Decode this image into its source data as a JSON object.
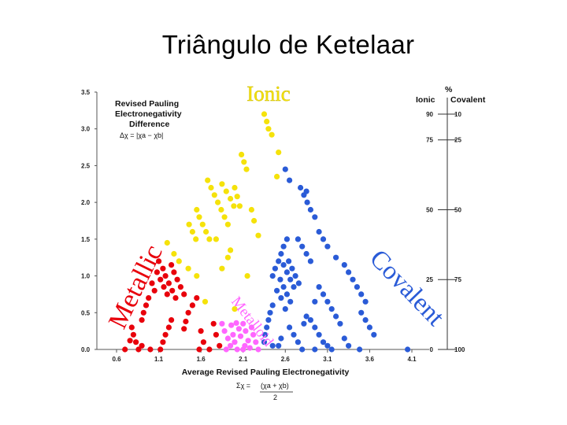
{
  "slide": {
    "title": "Triângulo de Ketelaar"
  },
  "chart_data": {
    "type": "scatter",
    "x_ticks": [
      "0.6",
      "1.1",
      "1.6",
      "2.1",
      "2.6",
      "3.1",
      "3.6",
      "4.1"
    ],
    "y_ticks": [
      "0.0",
      "0.5",
      "1.0",
      "1.5",
      "2.0",
      "2.5",
      "3.0",
      "3.5"
    ],
    "xlim": [
      0.6,
      4.1
    ],
    "ylim": [
      0,
      3.5
    ],
    "xlabel": "Average Revised Pauling Electronegativity",
    "x_formula": {
      "lhs": "Σχ =",
      "numerator": "(χa + χb)",
      "denominator": "2"
    },
    "ylabel_lines": [
      "Revised Pauling",
      "Electronegativity",
      "Difference"
    ],
    "y_formula": "Δχ = |χa − χb|",
    "region_labels": {
      "ionic": "Ionic",
      "covalent": "Covalent",
      "metallic": "Metallic",
      "metalloid": "Metalloid"
    },
    "percent_scale": {
      "header": "%",
      "left_title": "Ionic",
      "right_title": "Covalent",
      "rows": [
        {
          "delta_chi": 3.2,
          "ionic": "90",
          "covalent": "10"
        },
        {
          "delta_chi": 2.85,
          "ionic": "75",
          "covalent": "25"
        },
        {
          "delta_chi": 1.9,
          "ionic": "50",
          "covalent": "50"
        },
        {
          "delta_chi": 0.95,
          "ionic": "25",
          "covalent": "75"
        },
        {
          "delta_chi": 0.0,
          "ionic": "0",
          "covalent": "100"
        }
      ]
    },
    "series": [
      {
        "region": "ionic",
        "color": "#f5e20a",
        "points": [
          [
            2.35,
            3.2
          ],
          [
            2.38,
            3.1
          ],
          [
            2.4,
            3.0
          ],
          [
            2.44,
            2.92
          ],
          [
            2.08,
            2.65
          ],
          [
            2.11,
            2.55
          ],
          [
            2.14,
            2.45
          ],
          [
            2.52,
            2.68
          ],
          [
            2.5,
            2.35
          ],
          [
            1.68,
            2.3
          ],
          [
            1.72,
            2.2
          ],
          [
            1.76,
            2.1
          ],
          [
            1.8,
            2.0
          ],
          [
            1.84,
            1.9
          ],
          [
            1.88,
            1.8
          ],
          [
            1.92,
            1.7
          ],
          [
            1.85,
            2.25
          ],
          [
            1.9,
            2.15
          ],
          [
            1.95,
            2.05
          ],
          [
            1.99,
            1.95
          ],
          [
            2.0,
            2.2
          ],
          [
            2.03,
            2.08
          ],
          [
            2.06,
            1.95
          ],
          [
            1.55,
            1.9
          ],
          [
            1.58,
            1.8
          ],
          [
            1.62,
            1.7
          ],
          [
            1.66,
            1.6
          ],
          [
            1.7,
            1.5
          ],
          [
            1.46,
            1.7
          ],
          [
            1.5,
            1.6
          ],
          [
            1.54,
            1.5
          ],
          [
            2.2,
            1.9
          ],
          [
            2.23,
            1.75
          ],
          [
            2.28,
            1.55
          ],
          [
            1.2,
            1.45
          ],
          [
            1.28,
            1.3
          ],
          [
            1.34,
            1.2
          ],
          [
            1.45,
            1.1
          ],
          [
            1.55,
            1.0
          ],
          [
            1.95,
            1.35
          ],
          [
            1.92,
            1.25
          ],
          [
            1.85,
            1.1
          ],
          [
            2.15,
            1.0
          ],
          [
            2.0,
            0.55
          ],
          [
            1.65,
            0.65
          ],
          [
            1.78,
            1.5
          ]
        ]
      },
      {
        "region": "metallic",
        "color": "#e8000b",
        "points": [
          [
            1.1,
            1.2
          ],
          [
            1.15,
            1.1
          ],
          [
            1.18,
            1.0
          ],
          [
            1.22,
            0.9
          ],
          [
            1.26,
            0.8
          ],
          [
            1.3,
            0.7
          ],
          [
            1.08,
            1.05
          ],
          [
            1.12,
            0.95
          ],
          [
            1.16,
            0.85
          ],
          [
            1.2,
            0.75
          ],
          [
            1.25,
            1.15
          ],
          [
            1.28,
            1.05
          ],
          [
            1.32,
            0.95
          ],
          [
            1.36,
            0.85
          ],
          [
            1.4,
            0.75
          ],
          [
            1.02,
            0.9
          ],
          [
            1.05,
            0.8
          ],
          [
            0.98,
            0.7
          ],
          [
            0.95,
            0.6
          ],
          [
            0.92,
            0.5
          ],
          [
            0.9,
            0.4
          ],
          [
            0.78,
            0.3
          ],
          [
            0.8,
            0.2
          ],
          [
            0.83,
            0.1
          ],
          [
            0.86,
            0.0
          ],
          [
            0.76,
            0.12
          ],
          [
            0.9,
            0.05
          ],
          [
            0.7,
            0.0
          ],
          [
            1.0,
            0.0
          ],
          [
            1.25,
            0.4
          ],
          [
            1.22,
            0.3
          ],
          [
            1.18,
            0.2
          ],
          [
            1.15,
            0.1
          ],
          [
            1.12,
            0.0
          ],
          [
            1.45,
            0.5
          ],
          [
            1.5,
            0.6
          ],
          [
            1.55,
            0.7
          ],
          [
            1.42,
            0.38
          ],
          [
            1.4,
            0.28
          ],
          [
            1.6,
            0.25
          ],
          [
            1.63,
            0.1
          ],
          [
            1.58,
            0.0
          ],
          [
            1.75,
            0.35
          ],
          [
            1.78,
            0.2
          ],
          [
            1.82,
            0.05
          ],
          [
            1.7,
            0.0
          ]
        ]
      },
      {
        "region": "metalloid",
        "color": "#ff66ff",
        "points": [
          [
            1.85,
            0.35
          ],
          [
            1.88,
            0.25
          ],
          [
            1.92,
            0.15
          ],
          [
            1.95,
            0.05
          ],
          [
            1.98,
            0.2
          ],
          [
            2.0,
            0.1
          ],
          [
            2.03,
            0.0
          ],
          [
            2.05,
            0.28
          ],
          [
            2.07,
            0.18
          ],
          [
            2.1,
            0.35
          ],
          [
            2.13,
            0.25
          ],
          [
            2.16,
            0.12
          ],
          [
            2.18,
            0.02
          ],
          [
            2.2,
            0.3
          ],
          [
            2.22,
            0.2
          ],
          [
            2.25,
            0.1
          ],
          [
            2.28,
            0.0
          ],
          [
            1.9,
            0.0
          ],
          [
            2.1,
            0.0
          ],
          [
            1.96,
            0.33
          ],
          [
            2.02,
            0.36
          ],
          [
            2.12,
            0.05
          ]
        ]
      },
      {
        "region": "covalent",
        "color": "#2a5bd7",
        "points": [
          [
            2.6,
            2.45
          ],
          [
            2.65,
            2.3
          ],
          [
            2.78,
            2.2
          ],
          [
            2.82,
            2.1
          ],
          [
            2.86,
            2.0
          ],
          [
            2.9,
            1.9
          ],
          [
            2.95,
            1.8
          ],
          [
            2.85,
            2.15
          ],
          [
            3.0,
            1.6
          ],
          [
            3.05,
            1.5
          ],
          [
            3.1,
            1.4
          ],
          [
            3.2,
            1.25
          ],
          [
            3.3,
            1.15
          ],
          [
            3.35,
            1.05
          ],
          [
            3.4,
            0.95
          ],
          [
            3.45,
            0.85
          ],
          [
            3.5,
            0.75
          ],
          [
            3.55,
            0.65
          ],
          [
            3.5,
            0.5
          ],
          [
            3.55,
            0.4
          ],
          [
            3.6,
            0.3
          ],
          [
            3.65,
            0.2
          ],
          [
            2.75,
            1.5
          ],
          [
            2.8,
            1.4
          ],
          [
            2.85,
            1.3
          ],
          [
            2.9,
            1.2
          ],
          [
            2.62,
            1.5
          ],
          [
            2.58,
            1.4
          ],
          [
            2.55,
            1.3
          ],
          [
            2.52,
            1.2
          ],
          [
            2.48,
            1.1
          ],
          [
            2.45,
            1.0
          ],
          [
            2.58,
            1.15
          ],
          [
            2.62,
            1.05
          ],
          [
            2.66,
            0.95
          ],
          [
            2.7,
            0.85
          ],
          [
            2.64,
            1.2
          ],
          [
            2.68,
            1.1
          ],
          [
            2.72,
            1.0
          ],
          [
            2.76,
            0.9
          ],
          [
            2.54,
            0.95
          ],
          [
            2.58,
            0.85
          ],
          [
            2.62,
            0.75
          ],
          [
            2.66,
            0.65
          ],
          [
            2.5,
            0.8
          ],
          [
            2.55,
            0.7
          ],
          [
            2.6,
            0.55
          ],
          [
            2.45,
            0.6
          ],
          [
            2.42,
            0.5
          ],
          [
            2.4,
            0.4
          ],
          [
            2.38,
            0.3
          ],
          [
            2.36,
            0.2
          ],
          [
            2.35,
            0.1
          ],
          [
            2.45,
            0.05
          ],
          [
            2.55,
            0.15
          ],
          [
            2.52,
            0.05
          ],
          [
            2.65,
            0.3
          ],
          [
            2.7,
            0.2
          ],
          [
            2.75,
            0.1
          ],
          [
            2.8,
            0.0
          ],
          [
            2.9,
            0.4
          ],
          [
            2.95,
            0.3
          ],
          [
            3.0,
            0.2
          ],
          [
            3.05,
            0.1
          ],
          [
            3.1,
            0.05
          ],
          [
            3.0,
            0.85
          ],
          [
            3.05,
            0.75
          ],
          [
            3.1,
            0.65
          ],
          [
            3.15,
            0.55
          ],
          [
            3.2,
            0.45
          ],
          [
            3.25,
            0.35
          ],
          [
            3.3,
            0.15
          ],
          [
            3.35,
            0.05
          ],
          [
            2.95,
            0.65
          ],
          [
            2.85,
            0.45
          ],
          [
            2.82,
            0.35
          ],
          [
            3.48,
            0.0
          ],
          [
            4.05,
            0.0
          ],
          [
            2.95,
            0.0
          ],
          [
            3.15,
            0.0
          ]
        ]
      }
    ]
  }
}
